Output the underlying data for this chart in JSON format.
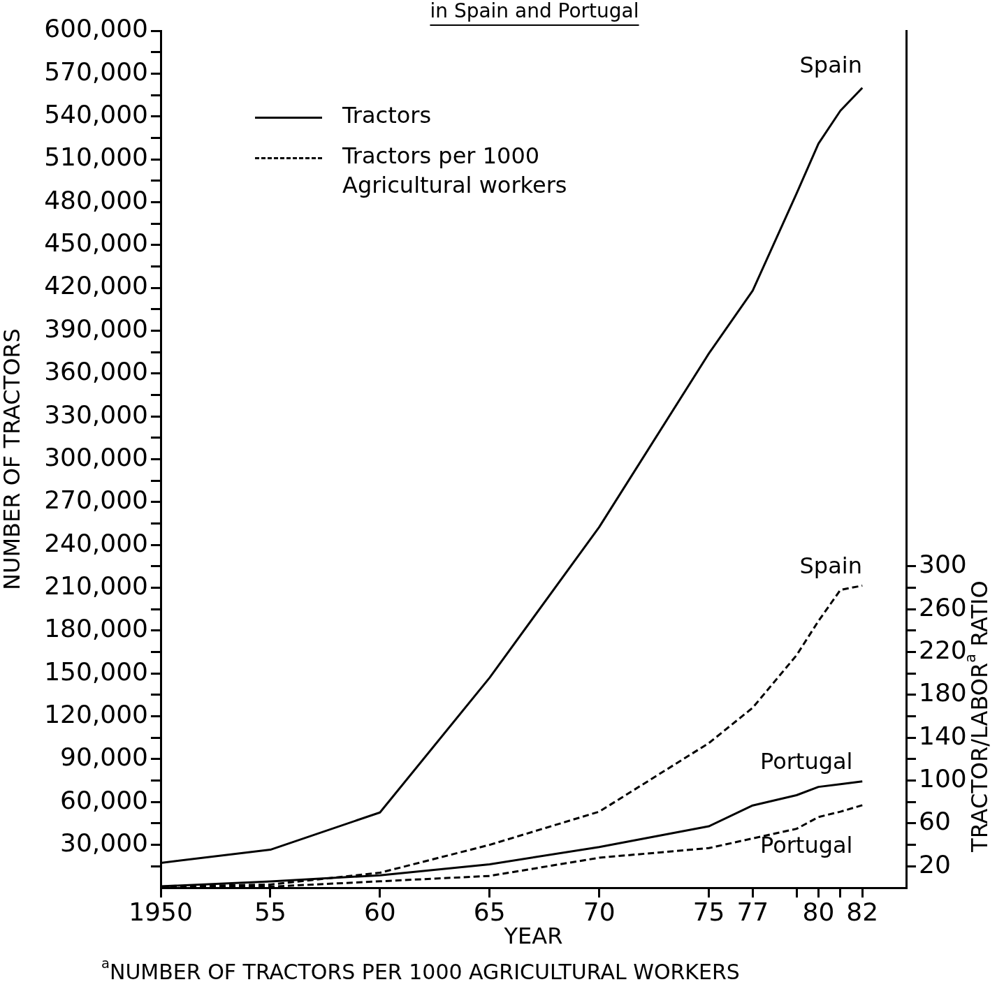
{
  "chart_data": {
    "type": "line",
    "title": "in Spain and Portugal",
    "xlabel": "YEAR",
    "ylabel": "NUMBER OF TRACTORS",
    "y2label": "TRACTOR/LABOR$^{a}$ RATIO",
    "annotations": [
      "Tractors",
      "Tractors per 1000 Agricultural workers",
      "$^{a}$NUMBER OF TRACTORS PER 1000 AGRICULTURAL WORKERS"
    ],
    "xlim": [
      1950,
      1984
    ],
    "xticks": [
      1950,
      {
        "value": 1955,
        "label": "55"
      },
      {
        "value": 1960,
        "label": "60"
      },
      {
        "value": 1965,
        "label": "65"
      },
      {
        "value": 1970,
        "label": "70"
      },
      {
        "value": 1975,
        "label": "75"
      },
      {
        "value": 1977,
        "label": "77"
      },
      {
        "value": 1979,
        "label": null
      },
      {
        "value": 1980,
        "label": "80"
      },
      {
        "value": 1981,
        "label": null
      },
      {
        "value": 1982,
        "label": "82"
      }
    ],
    "ylim": [
      0,
      600000
    ],
    "yticks": [
      {
        "value": 15000,
        "label": null
      },
      {
        "value": 30000,
        "label": "30,000"
      },
      {
        "value": 45000,
        "label": null
      },
      {
        "value": 60000,
        "label": "60,000"
      },
      {
        "value": 75000,
        "label": null
      },
      {
        "value": 90000,
        "label": "90,000"
      },
      {
        "value": 105000,
        "label": null
      },
      {
        "value": 120000,
        "label": "120,000"
      },
      {
        "value": 135000,
        "label": null
      },
      {
        "value": 150000,
        "label": "150,000"
      },
      {
        "value": 165000,
        "label": null
      },
      {
        "value": 180000,
        "label": "180,000"
      },
      {
        "value": 195000,
        "label": null
      },
      {
        "value": 210000,
        "label": "210,000"
      },
      {
        "value": 225000,
        "label": null
      },
      {
        "value": 240000,
        "label": "240,000"
      },
      {
        "value": 255000,
        "label": null
      },
      {
        "value": 270000,
        "label": "270,000"
      },
      {
        "value": 285000,
        "label": null
      },
      {
        "value": 300000,
        "label": "300,000"
      },
      {
        "value": 315000,
        "label": null
      },
      {
        "value": 330000,
        "label": "330,000"
      },
      {
        "value": 345000,
        "label": null
      },
      {
        "value": 360000,
        "label": "360,000"
      },
      {
        "value": 375000,
        "label": null
      },
      {
        "value": 390000,
        "label": "390,000"
      },
      {
        "value": 405000,
        "label": null
      },
      {
        "value": 420000,
        "label": "420,000"
      },
      {
        "value": 435000,
        "label": null
      },
      {
        "value": 450000,
        "label": "450,000"
      },
      {
        "value": 465000,
        "label": null
      },
      {
        "value": 480000,
        "label": "480,000"
      },
      {
        "value": 495000,
        "label": null
      },
      {
        "value": 510000,
        "label": "510,000"
      },
      {
        "value": 525000,
        "label": null
      },
      {
        "value": 540000,
        "label": "540,000"
      },
      {
        "value": 555000,
        "label": null
      },
      {
        "value": 570000,
        "label": "570,000"
      },
      {
        "value": 585000,
        "label": null
      },
      {
        "value": 600000,
        "label": "600,000"
      }
    ],
    "y2lim": [
      0,
      800
    ],
    "y2ticks": [
      20,
      {
        "value": 40,
        "label": null
      },
      60,
      {
        "value": 80,
        "label": null
      },
      100,
      {
        "value": 120,
        "label": null
      },
      140,
      {
        "value": 160,
        "label": null
      },
      180,
      {
        "value": 200,
        "label": null
      },
      220,
      {
        "value": 240,
        "label": null
      },
      260,
      {
        "value": 280,
        "label": null
      },
      300
    ],
    "marker": "none",
    "x": [
      1950,
      1955,
      1960,
      1965,
      1970,
      1975,
      1977,
      1979,
      1980,
      1981,
      1982
    ],
    "series": [
      {
        "name": "Spain",
        "color": "#000000",
        "line_style": "solid",
        "values": [
          17400,
          26600,
          52700,
          147000,
          252500,
          374000,
          418000,
          486000,
          521000,
          544000,
          560000
        ]
      },
      {
        "name": "Spain",
        "color": "#000000",
        "line_style": "dashed",
        "axis": "y2",
        "values": [
          1,
          3,
          14,
          40,
          71,
          135,
          168,
          217,
          249,
          278,
          282
        ]
      },
      {
        "name": "Portugal",
        "color": "#000000",
        "line_style": "solid",
        "values": [
          1000,
          4400,
          8700,
          16400,
          28500,
          43000,
          57600,
          64800,
          70600,
          72500,
          74500
        ]
      },
      {
        "name": "Portugal",
        "color": "#000000",
        "line_style": "dashed",
        "axis": "y2",
        "values": [
          1,
          1,
          6,
          11,
          28,
          37,
          46,
          55,
          66,
          71,
          77
        ]
      }
    ]
  }
}
